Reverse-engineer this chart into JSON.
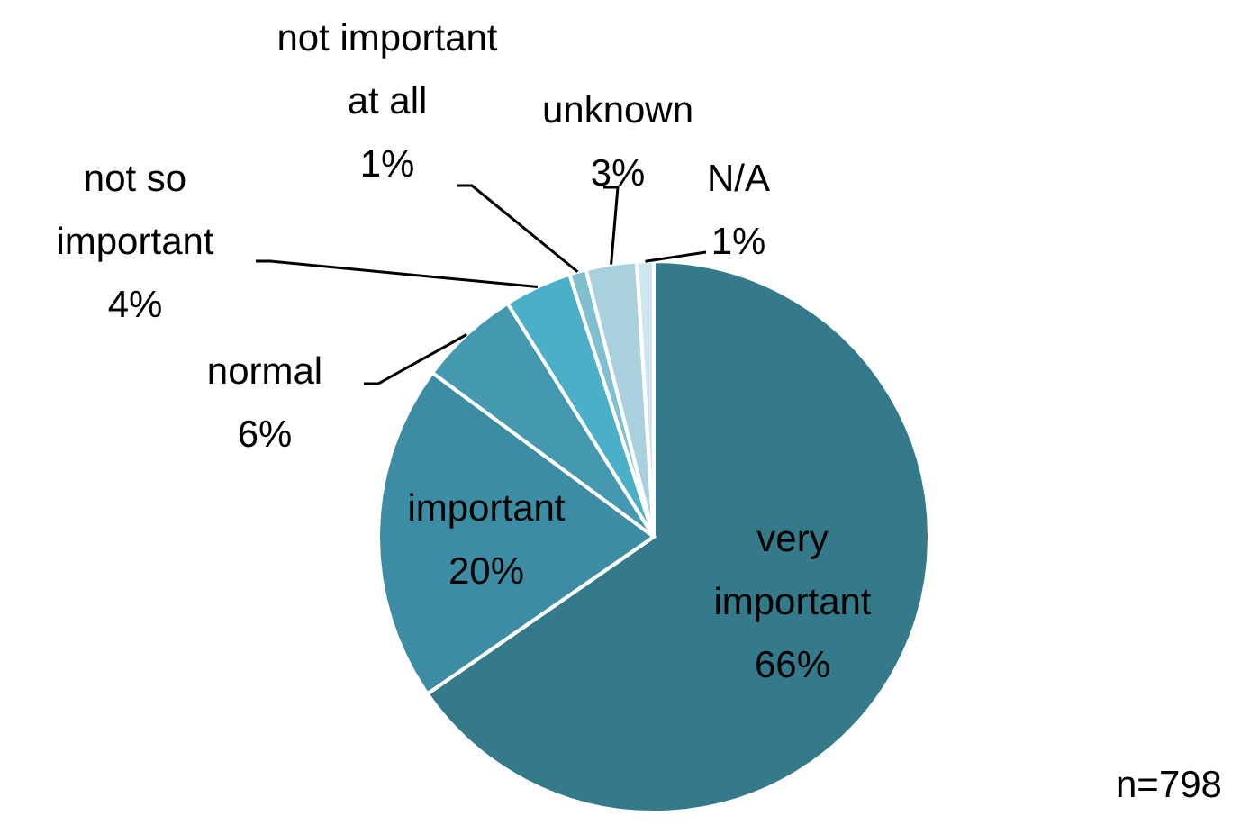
{
  "chart_data": {
    "type": "pie",
    "categories": [
      "very important",
      "important",
      "normal",
      "not so important",
      "not important at all",
      "unknown",
      "N/A"
    ],
    "values": [
      66,
      20,
      6,
      4,
      1,
      3,
      1
    ],
    "value_labels": [
      "66%",
      "20%",
      "6%",
      "4%",
      "1%",
      "3%",
      "1%"
    ],
    "colors": [
      "#347a8b",
      "#3c8ca4",
      "#4499b0",
      "#4bafc8",
      "#7fbfd0",
      "#a9d1dd",
      "#d0e6ee"
    ],
    "annotations": [
      "n=798"
    ]
  }
}
